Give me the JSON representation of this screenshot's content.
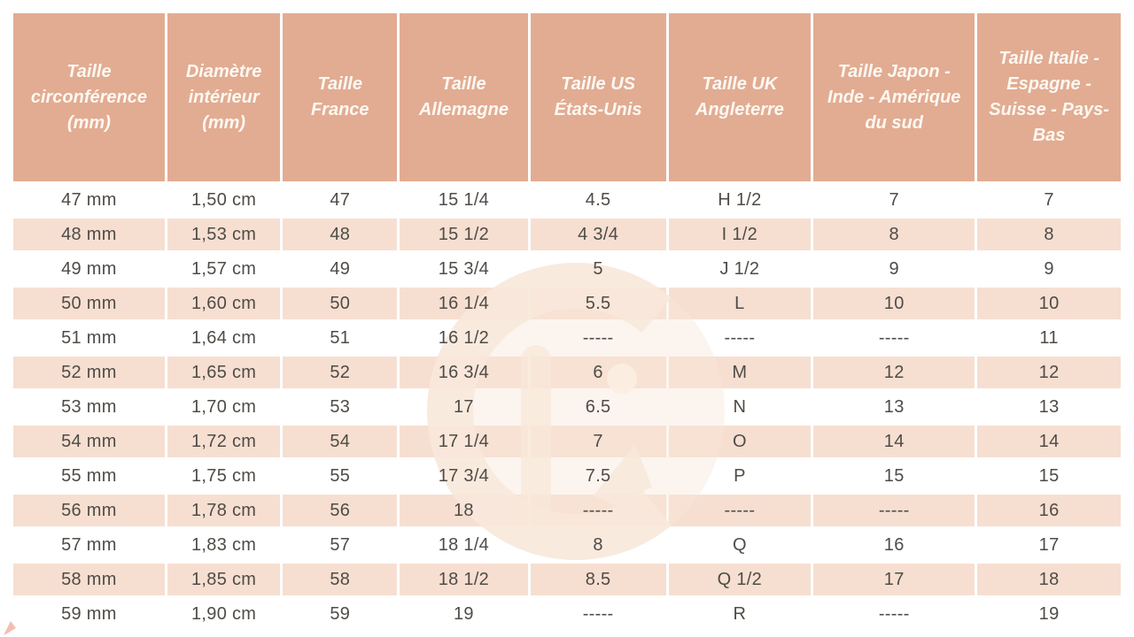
{
  "table": {
    "columns": [
      "Taille circonférence (mm)",
      "Diamètre intérieur (mm)",
      "Taille France",
      "Taille Allemagne",
      "Taille US États-Unis",
      "Taille UK Angleterre",
      "Taille Japon - Inde - Amérique du sud",
      "Taille Italie - Espagne - Suisse - Pays-Bas"
    ],
    "rows": [
      [
        "47 mm",
        "1,50 cm",
        "47",
        "15 1/4",
        "4.5",
        "H 1/2",
        "7",
        "7"
      ],
      [
        "48 mm",
        "1,53 cm",
        "48",
        "15 1/2",
        "4 3/4",
        "I 1/2",
        "8",
        "8"
      ],
      [
        "49 mm",
        "1,57 cm",
        "49",
        "15 3/4",
        "5",
        "J 1/2",
        "9",
        "9"
      ],
      [
        "50 mm",
        "1,60 cm",
        "50",
        "16 1/4",
        "5.5",
        "L",
        "10",
        "10"
      ],
      [
        "51 mm",
        "1,64 cm",
        "51",
        "16 1/2",
        "-----",
        "-----",
        "-----",
        "11"
      ],
      [
        "52 mm",
        "1,65 cm",
        "52",
        "16 3/4",
        "6",
        "M",
        "12",
        "12"
      ],
      [
        "53 mm",
        "1,70 cm",
        "53",
        "17",
        "6.5",
        "N",
        "13",
        "13"
      ],
      [
        "54 mm",
        "1,72 cm",
        "54",
        "17 1/4",
        "7",
        "O",
        "14",
        "14"
      ],
      [
        "55 mm",
        "1,75 cm",
        "55",
        "17 3/4",
        "7.5",
        "P",
        "15",
        "15"
      ],
      [
        "56 mm",
        "1,78 cm",
        "56",
        "18",
        "-----",
        "-----",
        "-----",
        "16"
      ],
      [
        "57 mm",
        "1,83 cm",
        "57",
        "18 1/4",
        "8",
        "Q",
        "16",
        "17"
      ],
      [
        "58 mm",
        "1,85 cm",
        "58",
        "18 1/2",
        "8.5",
        "Q 1/2",
        "17",
        "18"
      ],
      [
        "59 mm",
        "1,90 cm",
        "59",
        "19",
        "-----",
        "R",
        "-----",
        "19"
      ]
    ]
  },
  "watermark": {
    "icon": "g-logo-watermark"
  },
  "colors": {
    "header_bg": "#e2ac92",
    "header_text": "#fcf8f2",
    "stripe_bg": "#f6dfd1",
    "row_bg": "#ffffff",
    "body_text": "#4f4b47",
    "watermark": "#f8e8da",
    "page_bg": "#ffffff"
  }
}
